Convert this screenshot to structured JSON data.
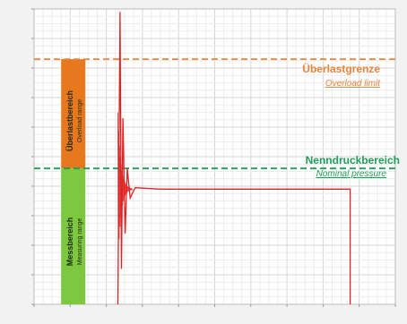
{
  "chart_data": {
    "type": "line",
    "title": "",
    "xlabel": "",
    "ylabel": "",
    "xlim": [
      0,
      10
    ],
    "ylim": [
      0,
      10
    ],
    "grid": true,
    "series": [
      {
        "color": "#dd2222",
        "x": [
          2.32,
          2.38,
          2.42,
          2.46,
          2.52,
          2.58,
          2.66,
          2.8,
          3.5,
          5.0,
          7.0,
          8.75,
          8.75
        ],
        "y": [
          0,
          9.9,
          1.2,
          6.3,
          2.4,
          4.6,
          3.6,
          3.95,
          3.9,
          3.9,
          3.9,
          3.9,
          0
        ],
        "oscillation": {
          "x_start": 2.32,
          "x_end": 2.72,
          "y_center": 3.9
        }
      }
    ],
    "thresholds": [
      {
        "key": "overload",
        "value": 8.3,
        "color": "#e8843c"
      },
      {
        "key": "nominal",
        "value": 4.6,
        "color": "#1e9e56"
      }
    ],
    "bands": [
      {
        "key": "overload_range",
        "from": 4.6,
        "to": 8.3,
        "color": "#e8781e"
      },
      {
        "key": "measuring_range",
        "from": 0,
        "to": 4.6,
        "color": "#7ec840"
      }
    ]
  },
  "annotations": {
    "overload_main": "Überlastgrenze",
    "overload_sub": "Overload limit",
    "nominal_main": "Nenndruckbereich",
    "nominal_sub": "Nominal pressure"
  },
  "bands_text": {
    "overload_main": "Überlastbereich",
    "overload_sub": "Overload range",
    "measuring_main": "Messbereich",
    "measuring_sub": "Measuring range"
  },
  "colors": {
    "overload": "#e8843c",
    "nominal": "#1e9e56",
    "signal": "#dd2222",
    "band_overload": "#e8781e",
    "band_measuring": "#7ec840"
  }
}
